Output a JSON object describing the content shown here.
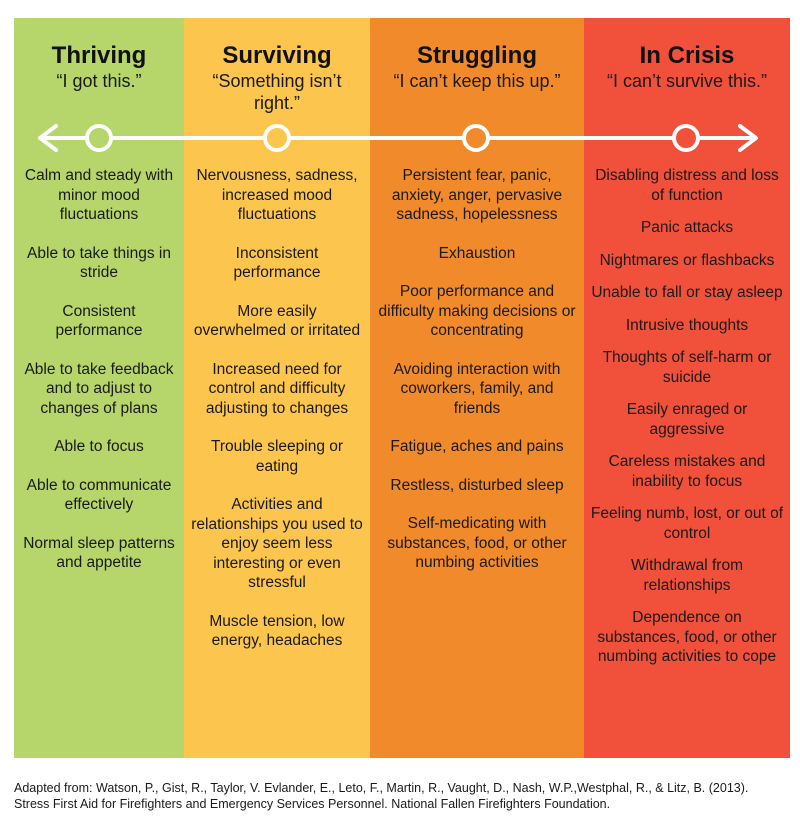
{
  "colors": {
    "thriving": "#b6d56a",
    "surviving": "#fbc54e",
    "struggling": "#f18a2a",
    "crisis": "#f1503a",
    "arrow": "#ffffff"
  },
  "columns": [
    {
      "title": "Thriving",
      "quote": "“I got this.”",
      "items": [
        "Calm and steady with minor mood fluctuations",
        "Able to take things in stride",
        "Consistent performance",
        "Able to take feedback and to adjust to changes of plans",
        "Able to focus",
        "Able to communicate effectively",
        "Normal sleep patterns and appetite"
      ]
    },
    {
      "title": "Surviving",
      "quote": "“Something isn’t right.”",
      "items": [
        "Nervousness, sadness, increased mood fluctuations",
        "Inconsistent performance",
        "More easily overwhelmed or irritated",
        "Increased need for control and difficulty adjusting to changes",
        "Trouble sleeping or eating",
        "Activities and relationships you used to enjoy seem less interesting or even stressful",
        "Muscle tension, low energy, headaches"
      ]
    },
    {
      "title": "Struggling",
      "quote": "“I can’t keep this up.”",
      "items": [
        "Persistent fear, panic, anxiety, anger, pervasive sadness, hopelessness",
        "Exhaustion",
        "Poor performance and difficulty making decisions or concentrating",
        "Avoiding interaction with coworkers, family, and friends",
        "Fatigue, aches and pains",
        "Restless, disturbed sleep",
        "Self-medicating with substances, food, or other numbing activities"
      ]
    },
    {
      "title": "In Crisis",
      "quote": "“I can’t survive this.”",
      "items": [
        "Disabling distress and loss of function",
        "Panic attacks",
        "Nightmares or flashbacks",
        "Unable to fall or stay asleep",
        "Intrusive thoughts",
        "Thoughts of self-harm or suicide",
        "Easily enraged or aggressive",
        "Careless mistakes and inability to focus",
        "Feeling numb, lost, or out of control",
        "Withdrawal from relationships",
        "Dependence on substances, food, or other numbing activities to cope"
      ]
    }
  ],
  "citation": {
    "line1": "Adapted from: Watson, P., Gist, R., Taylor, V. Evlander, E., Leto, F., Martin, R., Vaught, D., Nash, W.P.,Westphal, R., & Litz, B. (2013).",
    "line2": "Stress First Aid for Firefighters and Emergency Services Personnel. National Fallen Firefighters Foundation."
  }
}
